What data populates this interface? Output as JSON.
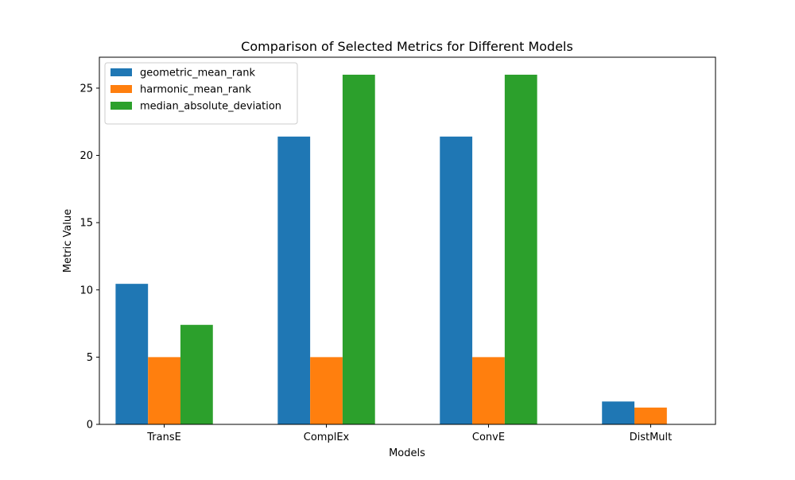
{
  "chart_data": {
    "type": "bar",
    "title": "Comparison of Selected Metrics for Different Models",
    "xlabel": "Models",
    "ylabel": "Metric Value",
    "categories": [
      "TransE",
      "ComplEx",
      "ConvE",
      "DistMult"
    ],
    "series": [
      {
        "name": "geometric_mean_rank",
        "color": "#1f77b4",
        "values": [
          10.45,
          21.4,
          21.4,
          1.7
        ]
      },
      {
        "name": "harmonic_mean_rank",
        "color": "#ff7f0e",
        "values": [
          5.0,
          5.0,
          5.0,
          1.25
        ]
      },
      {
        "name": "median_absolute_deviation",
        "color": "#2ca02c",
        "values": [
          7.4,
          26.0,
          26.0,
          0
        ]
      }
    ],
    "ylim": [
      0,
      27.3
    ],
    "yticks": [
      0,
      5,
      10,
      15,
      20,
      25
    ],
    "grid": false,
    "legend_position": "top-left"
  }
}
